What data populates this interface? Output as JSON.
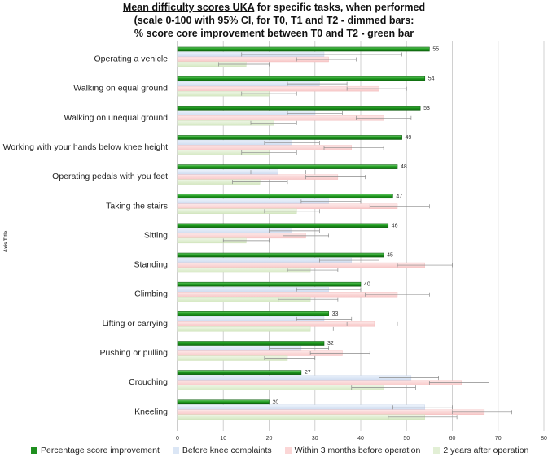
{
  "chart_data": {
    "type": "bar",
    "orientation": "horizontal",
    "title_lines": [
      "Mean difficulty scores UKA",
      " for specific tasks, when performed",
      "(scale 0-100 with 95% CI, for T0, T1 and T2 - dimmed bars:",
      "% score core improvement between T0 and T2 - green bar"
    ],
    "ylabel": "Axis Title",
    "xlim": [
      0,
      80
    ],
    "x_ticks": [
      "0",
      "10",
      "20",
      "30",
      "40",
      "50",
      "60",
      "70",
      "80"
    ],
    "legend_position": "bottom",
    "grid": true,
    "categories": [
      "Operating a vehicle",
      "Walking on equal ground",
      "Walking on unequal ground",
      "Working with your hands below knee height",
      "Operating pedals with you feet",
      "Taking the stairs",
      "Sitting",
      "Standing",
      "Climbing",
      "Lifting or carrying",
      "Pushing or pulling",
      "Crouching",
      "Kneeling"
    ],
    "series": [
      {
        "name": "Percentage score improvement",
        "color": "#2e9e2e",
        "values": [
          55,
          54,
          53,
          49,
          48,
          47,
          46,
          45,
          40,
          33,
          32,
          27,
          20
        ],
        "labels": [
          "55",
          "54",
          "53",
          "49",
          "48",
          "47",
          "46",
          "45",
          "40",
          "33",
          "32",
          "27",
          "20"
        ]
      },
      {
        "name": "Before knee complaints",
        "color": "#dbe6f5",
        "values": [
          32,
          31,
          30,
          25,
          22,
          33,
          25,
          38,
          33,
          32,
          27,
          51,
          54
        ],
        "ci": [
          [
            14,
            49
          ],
          [
            24,
            37
          ],
          [
            24,
            36
          ],
          [
            19,
            31
          ],
          [
            16,
            28
          ],
          [
            27,
            40
          ],
          [
            20,
            31
          ],
          [
            31,
            44
          ],
          [
            26,
            40
          ],
          [
            26,
            38
          ],
          [
            20,
            33
          ],
          [
            44,
            57
          ],
          [
            47,
            60
          ]
        ]
      },
      {
        "name": "Within 3 months before operation",
        "color": "#fbd6d6",
        "values": [
          33,
          44,
          45,
          38,
          35,
          48,
          28,
          54,
          48,
          43,
          36,
          62,
          67
        ],
        "ci": [
          [
            26,
            39
          ],
          [
            37,
            50
          ],
          [
            39,
            51
          ],
          [
            32,
            45
          ],
          [
            28,
            41
          ],
          [
            42,
            55
          ],
          [
            23,
            33
          ],
          [
            48,
            60
          ],
          [
            41,
            55
          ],
          [
            37,
            48
          ],
          [
            29,
            42
          ],
          [
            55,
            68
          ],
          [
            60,
            73
          ]
        ]
      },
      {
        "name": "2 years after operation",
        "color": "#e2efd5",
        "values": [
          15,
          20,
          21,
          20,
          18,
          26,
          15,
          29,
          29,
          29,
          24,
          45,
          54
        ],
        "ci": [
          [
            9,
            20
          ],
          [
            14,
            26
          ],
          [
            16,
            26
          ],
          [
            14,
            26
          ],
          [
            12,
            24
          ],
          [
            19,
            31
          ],
          [
            10,
            20
          ],
          [
            24,
            35
          ],
          [
            22,
            35
          ],
          [
            23,
            34
          ],
          [
            19,
            30
          ],
          [
            38,
            52
          ],
          [
            46,
            61
          ]
        ]
      }
    ]
  }
}
